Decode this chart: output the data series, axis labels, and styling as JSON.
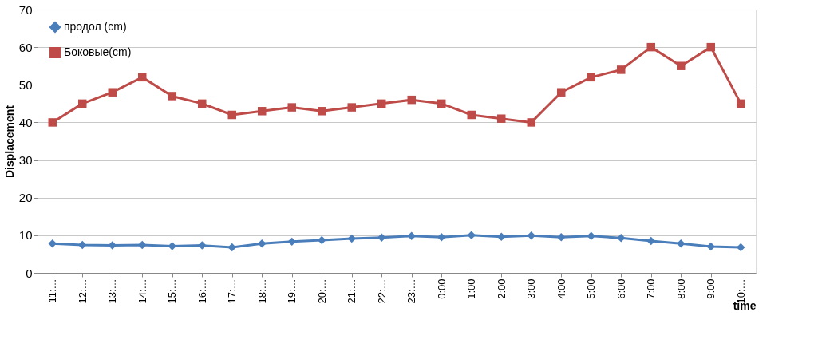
{
  "chart_data": {
    "type": "line",
    "xlabel": "time",
    "ylabel": "Displacement",
    "categories": [
      "11:…",
      "12:…",
      "13:…",
      "14:…",
      "15:…",
      "16:…",
      "17:…",
      "18:…",
      "19:…",
      "20:…",
      "21:…",
      "22:…",
      "23:…",
      "0:00",
      "1:00",
      "2:00",
      "3:00",
      "4:00",
      "5:00",
      "6:00",
      "7:00",
      "8:00",
      "9:00",
      "10:…"
    ],
    "series": [
      {
        "name": "продол (cm)",
        "color": "#4a7ebb",
        "marker": "diamond",
        "values": [
          7.8,
          7.4,
          7.3,
          7.4,
          7.1,
          7.3,
          6.8,
          7.8,
          8.3,
          8.7,
          9.1,
          9.4,
          9.8,
          9.5,
          10,
          9.6,
          9.9,
          9.5,
          9.8,
          9.3,
          8.5,
          7.8,
          7,
          6.8
        ]
      },
      {
        "name": "Боковые(cm)",
        "color": "#be4b48",
        "marker": "square",
        "values": [
          40,
          45,
          48,
          52,
          47,
          45,
          42,
          43,
          44,
          43,
          44,
          45,
          46,
          45,
          42,
          41,
          40,
          48,
          52,
          54,
          60,
          55,
          60,
          45
        ]
      }
    ],
    "ylim": [
      0,
      70
    ],
    "yticks": [
      0,
      10,
      20,
      30,
      40,
      50,
      60,
      70
    ],
    "grid": "y",
    "legend": "top left",
    "line_style": "solid"
  }
}
